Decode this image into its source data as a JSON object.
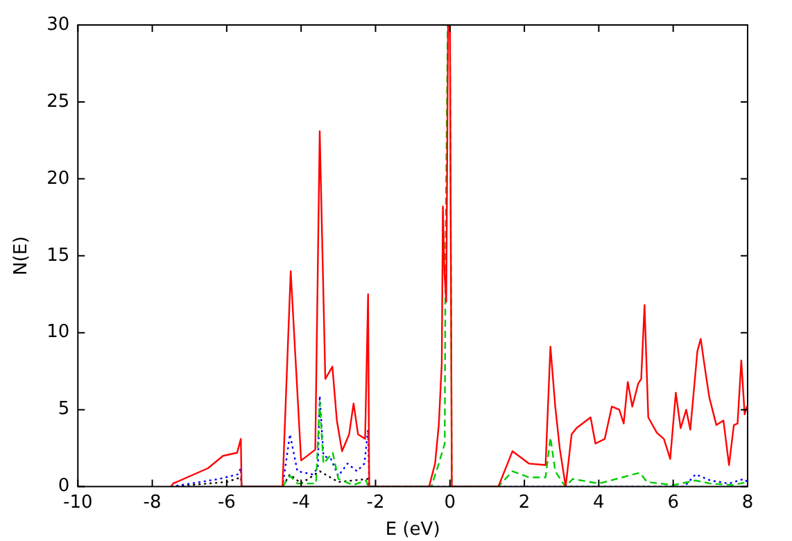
{
  "chart_data": {
    "type": "line",
    "xlabel": "E (eV)",
    "ylabel": "N(E)",
    "xlim": [
      -10,
      8
    ],
    "ylim": [
      0,
      30
    ],
    "xticks": [
      -10,
      -8,
      -6,
      -4,
      -2,
      0,
      2,
      4,
      6,
      8
    ],
    "yticks": [
      0,
      5,
      10,
      15,
      20,
      25,
      30
    ],
    "grid": false,
    "legend": false,
    "marker": "none",
    "series": [
      {
        "color": "#ff0000",
        "line_style": "solid",
        "x": [
          -7.5,
          -7.44,
          -6.5,
          -6.1,
          -5.72,
          -5.62,
          -5.6,
          -4.5,
          -4.28,
          -4.0,
          -3.62,
          -3.5,
          -3.35,
          -3.16,
          -3.04,
          -2.9,
          -2.71,
          -2.59,
          -2.47,
          -2.28,
          -2.2,
          -2.17,
          -0.56,
          -0.4,
          -0.3,
          -0.22,
          -0.19,
          -0.15,
          -0.1,
          -0.05,
          0,
          0.05,
          1.3,
          1.68,
          2.12,
          2.57,
          2.7,
          2.83,
          2.95,
          3.11,
          3.27,
          3.4,
          3.78,
          3.91,
          4.16,
          4.35,
          4.55,
          4.67,
          4.78,
          4.9,
          5.06,
          5.14,
          5.23,
          5.33,
          5.56,
          5.75,
          5.92,
          6.07,
          6.2,
          6.35,
          6.46,
          6.65,
          6.74,
          6.84,
          6.97,
          7.16,
          7.35,
          7.5,
          7.63,
          7.73,
          7.83,
          7.92,
          7.98,
          8
        ],
        "values": [
          0,
          0.2,
          1.2,
          2,
          2.2,
          3.1,
          0,
          0,
          14,
          1.7,
          2.4,
          23.1,
          7,
          7.8,
          4.3,
          2.3,
          3.4,
          5.4,
          3.4,
          3.1,
          12.5,
          0,
          0,
          1.5,
          4,
          8,
          18.2,
          14,
          12,
          30,
          30,
          0,
          0,
          2.3,
          1.5,
          1.4,
          9.1,
          5.2,
          2.5,
          0,
          3.4,
          3.8,
          4.5,
          2.8,
          3.1,
          5.2,
          5,
          4.1,
          6.8,
          5.2,
          6.7,
          7,
          11.8,
          4.5,
          3.5,
          3.1,
          1.8,
          6.1,
          3.8,
          5,
          3.7,
          8.8,
          9.6,
          7.9,
          5.8,
          4,
          4.3,
          1.4,
          4,
          4.1,
          8.2,
          4.7,
          5.2,
          5
        ]
      },
      {
        "color": "#00cc00",
        "line_style": "dashed",
        "x": [
          -4.5,
          -4.3,
          -4.1,
          -3.6,
          -3.5,
          -3.4,
          -3.15,
          -3.0,
          -2.6,
          -2.25,
          -2.2,
          -0.5,
          -0.3,
          -0.14,
          -0.12,
          -0.06,
          0,
          0.05,
          1.3,
          1.68,
          2.12,
          2.57,
          2.7,
          2.83,
          3.1,
          3.3,
          4,
          5.1,
          5.3,
          6,
          6.6,
          7,
          7.6,
          8
        ],
        "values": [
          0,
          0.7,
          0.2,
          0.2,
          5.5,
          1.5,
          2.2,
          0.5,
          0.1,
          0.4,
          0,
          0,
          1.5,
          2.8,
          15,
          30,
          30,
          0,
          0,
          1,
          0.6,
          0.6,
          3.2,
          1,
          0,
          0.5,
          0.2,
          0.9,
          0.3,
          0.1,
          0.4,
          0.2,
          0.1,
          0.3
        ]
      },
      {
        "color": "#0000ff",
        "line_style": "dotted",
        "x": [
          -7.5,
          -6.2,
          -5.7,
          -5.62,
          -5.6,
          -4.5,
          -4.3,
          -4.1,
          -3.7,
          -3.55,
          -3.5,
          -3.4,
          -3.2,
          -3.0,
          -2.75,
          -2.5,
          -2.3,
          -2.2,
          -2.17,
          6.3,
          6.6,
          7,
          7.5,
          7.9,
          8
        ],
        "values": [
          0,
          0.5,
          0.8,
          1.2,
          0,
          0,
          3.4,
          1,
          0.8,
          1.2,
          5.9,
          2,
          1.8,
          0.7,
          1.5,
          1,
          1.5,
          3.7,
          0,
          0,
          0.8,
          0.4,
          0.2,
          0.5,
          0.3
        ]
      },
      {
        "color": "#000000",
        "line_style": "dotted",
        "x": [
          -7.5,
          -6,
          -5.62,
          -5.6,
          -4.5,
          -4.3,
          -4.0,
          -3.5,
          -3.0,
          -2.2,
          -2.17
        ],
        "values": [
          0,
          0.3,
          0.6,
          0,
          0,
          0.8,
          0.2,
          1,
          0.3,
          0.5,
          0
        ]
      }
    ]
  }
}
